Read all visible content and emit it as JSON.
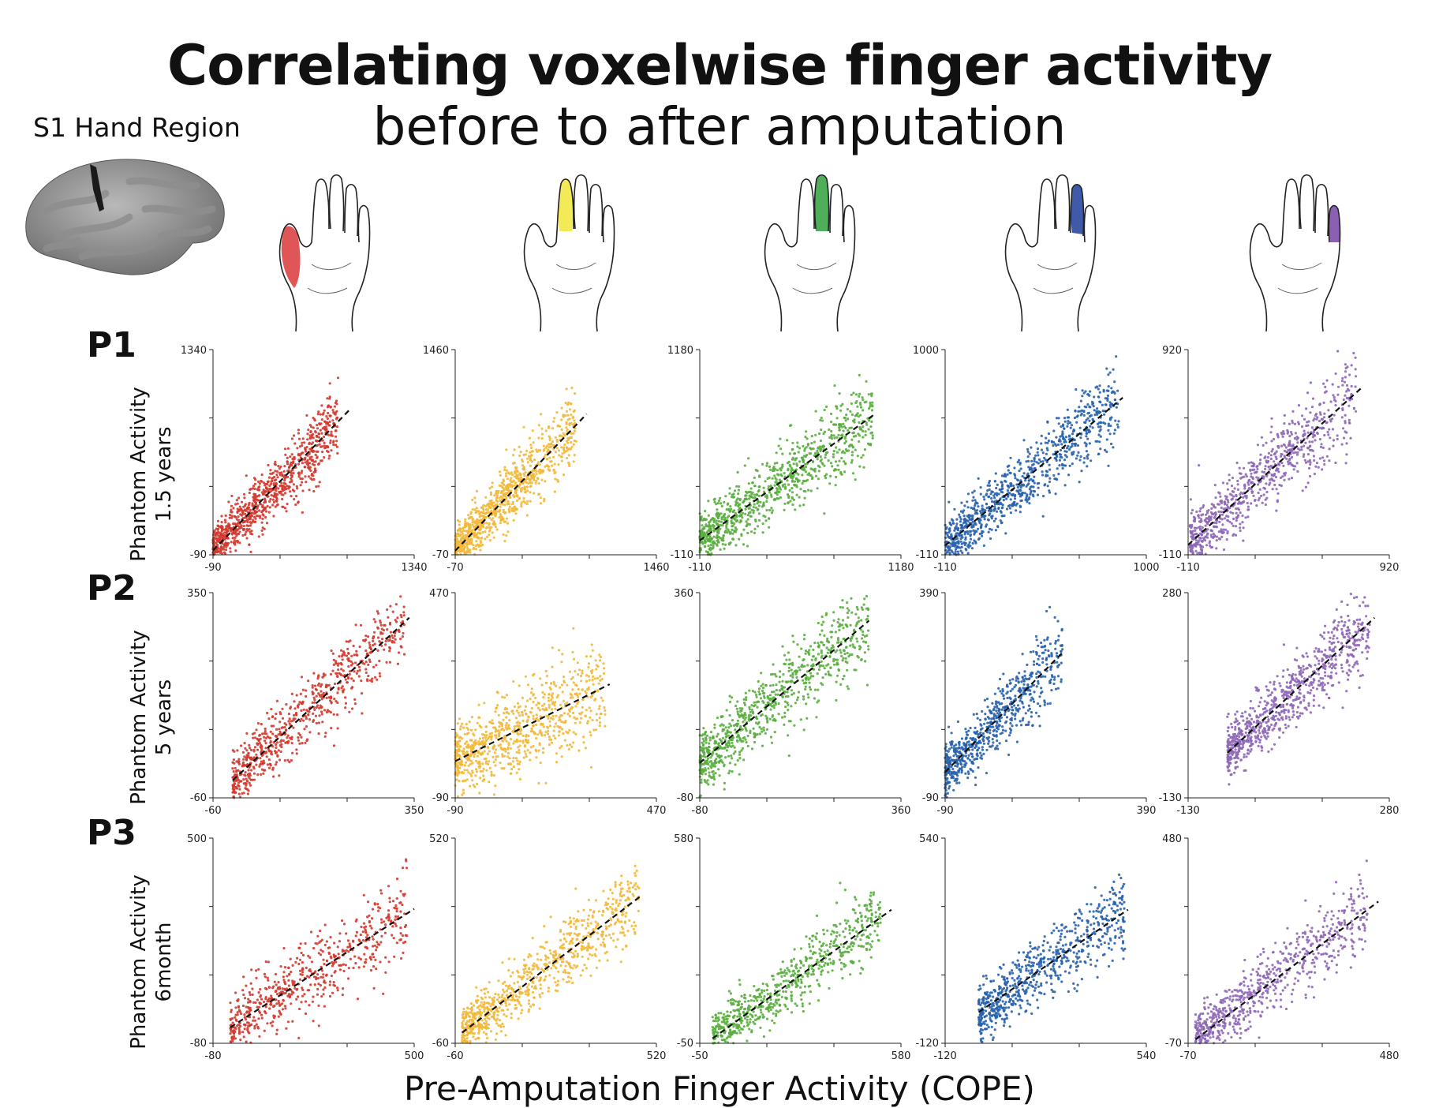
{
  "header": {
    "title": "Correlating voxelwise finger activity",
    "subtitle": "before to after amputation"
  },
  "brain_panel": {
    "label": "S1 Hand Region"
  },
  "fingers": [
    {
      "color": "#e05555"
    },
    {
      "color": "#f3ea58"
    },
    {
      "color": "#4fae5a"
    },
    {
      "color": "#3f5aa8"
    },
    {
      "color": "#8b5fb3"
    }
  ],
  "rows": [
    {
      "label": "P1",
      "ylabel_1": "Phantom Activity",
      "ylabel_2": "1.5 years"
    },
    {
      "label": "P2",
      "ylabel_1": "Phantom Activity",
      "ylabel_2": "5 years"
    },
    {
      "label": "P3",
      "ylabel_1": "Phantom Activity",
      "ylabel_2": "6month"
    }
  ],
  "xlabel": "Pre-Amputation Finger Activity (COPE)",
  "series_colors": [
    "#d33a2f",
    "#f2b93b",
    "#5aae3f",
    "#2862ad",
    "#8e68b7"
  ],
  "chart_data": [
    {
      "type": "scatter",
      "row": 0,
      "col": 0,
      "xlim": [
        -90,
        1340
      ],
      "ylim": [
        -90,
        1340
      ],
      "tick_x": [
        "-90",
        "1340"
      ],
      "tick_y": [
        "-90",
        "1340"
      ],
      "fit": [
        [
          -90,
          -60
        ],
        [
          880,
          920
        ]
      ],
      "n": 900,
      "spread": 0.07,
      "x_range": [
        -90,
        800
      ]
    },
    {
      "type": "scatter",
      "row": 0,
      "col": 1,
      "xlim": [
        -70,
        1460
      ],
      "ylim": [
        -70,
        1460
      ],
      "tick_x": [
        "-70",
        "1460"
      ],
      "tick_y": [
        "-70",
        "1460"
      ],
      "fit": [
        [
          -70,
          -40
        ],
        [
          930,
          980
        ]
      ],
      "n": 900,
      "spread": 0.07,
      "x_range": [
        -70,
        850
      ]
    },
    {
      "type": "scatter",
      "row": 0,
      "col": 2,
      "xlim": [
        -110,
        1180
      ],
      "ylim": [
        -110,
        1180
      ],
      "tick_x": [
        "-110",
        "1180"
      ],
      "tick_y": [
        "-110",
        "1180"
      ],
      "fit": [
        [
          -110,
          -20
        ],
        [
          1020,
          780
        ]
      ],
      "n": 900,
      "spread": 0.08,
      "x_range": [
        -110,
        1000
      ]
    },
    {
      "type": "scatter",
      "row": 0,
      "col": 3,
      "xlim": [
        -110,
        1000
      ],
      "ylim": [
        -110,
        1000
      ],
      "tick_x": [
        "-110",
        "1000"
      ],
      "tick_y": [
        "-110",
        "1000"
      ],
      "fit": [
        [
          -110,
          -60
        ],
        [
          870,
          740
        ]
      ],
      "n": 900,
      "spread": 0.08,
      "x_range": [
        -110,
        850
      ]
    },
    {
      "type": "scatter",
      "row": 0,
      "col": 4,
      "xlim": [
        -110,
        920
      ],
      "ylim": [
        -110,
        920
      ],
      "tick_x": [
        "-110",
        "920"
      ],
      "tick_y": [
        "-110",
        "920"
      ],
      "fit": [
        [
          -110,
          -60
        ],
        [
          780,
          730
        ]
      ],
      "n": 800,
      "spread": 0.09,
      "x_range": [
        -100,
        750
      ]
    },
    {
      "type": "scatter",
      "row": 1,
      "col": 0,
      "xlim": [
        -60,
        350
      ],
      "ylim": [
        -60,
        350
      ],
      "tick_x": [
        "-60",
        "350"
      ],
      "tick_y": [
        "-60",
        "350"
      ],
      "fit": [
        [
          -20,
          -25
        ],
        [
          340,
          300
        ]
      ],
      "n": 700,
      "spread": 0.08,
      "x_range": [
        -20,
        330
      ]
    },
    {
      "type": "scatter",
      "row": 1,
      "col": 1,
      "xlim": [
        -90,
        470
      ],
      "ylim": [
        -90,
        470
      ],
      "tick_x": [
        "-90",
        "470"
      ],
      "tick_y": [
        "-90",
        "470"
      ],
      "fit": [
        [
          -90,
          10
        ],
        [
          340,
          220
        ]
      ],
      "n": 800,
      "spread": 0.1,
      "x_range": [
        -90,
        330
      ]
    },
    {
      "type": "scatter",
      "row": 1,
      "col": 2,
      "xlim": [
        -80,
        360
      ],
      "ylim": [
        -80,
        360
      ],
      "tick_x": [
        "-80",
        "360"
      ],
      "tick_y": [
        "-80",
        "360"
      ],
      "fit": [
        [
          -80,
          -5
        ],
        [
          290,
          300
        ]
      ],
      "n": 800,
      "spread": 0.09,
      "x_range": [
        -80,
        290
      ]
    },
    {
      "type": "scatter",
      "row": 1,
      "col": 3,
      "xlim": [
        -90,
        390
      ],
      "ylim": [
        -90,
        390
      ],
      "tick_x": [
        "-90",
        "390"
      ],
      "tick_y": [
        "-90",
        "390"
      ],
      "fit": [
        [
          -90,
          -30
        ],
        [
          190,
          250
        ]
      ],
      "n": 700,
      "spread": 0.08,
      "x_range": [
        -90,
        190
      ]
    },
    {
      "type": "scatter",
      "row": 1,
      "col": 4,
      "xlim": [
        -130,
        280
      ],
      "ylim": [
        -130,
        280
      ],
      "tick_x": [
        "-130",
        "280"
      ],
      "tick_y": [
        "-130",
        "280"
      ],
      "fit": [
        [
          -50,
          -40
        ],
        [
          250,
          230
        ]
      ],
      "n": 800,
      "spread": 0.08,
      "x_range": [
        -50,
        240
      ]
    },
    {
      "type": "scatter",
      "row": 2,
      "col": 0,
      "xlim": [
        -80,
        500
      ],
      "ylim": [
        -80,
        500
      ],
      "tick_x": [
        "-80",
        "500"
      ],
      "tick_y": [
        "-80",
        "500"
      ],
      "fit": [
        [
          -30,
          -35
        ],
        [
          500,
          300
        ]
      ],
      "n": 600,
      "spread": 0.09,
      "x_range": [
        -30,
        480
      ]
    },
    {
      "type": "scatter",
      "row": 2,
      "col": 1,
      "xlim": [
        -60,
        520
      ],
      "ylim": [
        -60,
        520
      ],
      "tick_x": [
        "-60",
        "520"
      ],
      "tick_y": [
        "-60",
        "520"
      ],
      "fit": [
        [
          -40,
          -30
        ],
        [
          480,
          360
        ]
      ],
      "n": 800,
      "spread": 0.07,
      "x_range": [
        -40,
        470
      ]
    },
    {
      "type": "scatter",
      "row": 2,
      "col": 2,
      "xlim": [
        -50,
        580
      ],
      "ylim": [
        -50,
        580
      ],
      "tick_x": [
        "-50",
        "580"
      ],
      "tick_y": [
        "-50",
        "580"
      ],
      "fit": [
        [
          -10,
          -35
        ],
        [
          550,
          360
        ]
      ],
      "n": 700,
      "spread": 0.07,
      "x_range": [
        -10,
        520
      ]
    },
    {
      "type": "scatter",
      "row": 2,
      "col": 3,
      "xlim": [
        -120,
        540
      ],
      "ylim": [
        -120,
        540
      ],
      "tick_x": [
        "-120",
        "540"
      ],
      "tick_y": [
        "-120",
        "540"
      ],
      "fit": [
        [
          -10,
          -20
        ],
        [
          480,
          310
        ]
      ],
      "n": 700,
      "spread": 0.08,
      "x_range": [
        -10,
        470
      ]
    },
    {
      "type": "scatter",
      "row": 2,
      "col": 4,
      "xlim": [
        -70,
        480
      ],
      "ylim": [
        -70,
        480
      ],
      "tick_x": [
        "-70",
        "480"
      ],
      "tick_y": [
        "-70",
        "480"
      ],
      "fit": [
        [
          -50,
          -60
        ],
        [
          450,
          310
        ]
      ],
      "n": 700,
      "spread": 0.08,
      "x_range": [
        -50,
        420
      ]
    }
  ]
}
